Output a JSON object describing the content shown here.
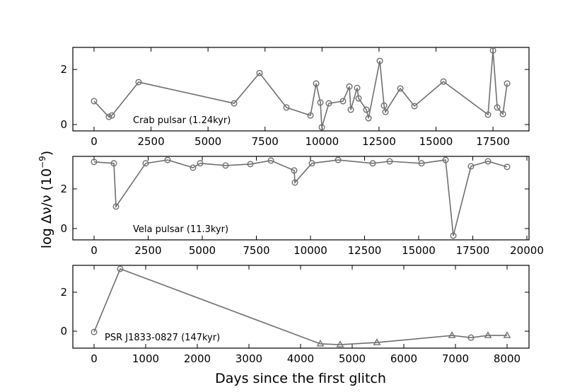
{
  "chart_data": [
    {
      "type": "line",
      "annotation": "Crab pulsar (1.24kyr)",
      "color": "#707070",
      "marker": "o",
      "x": [
        0,
        650,
        780,
        1955,
        6143,
        7260,
        8440,
        9494,
        9743,
        9929,
        9991,
        10301,
        10922,
        11200,
        11263,
        11542,
        11604,
        11945,
        12039,
        12535,
        12721,
        12783,
        13435,
        14055,
        15327,
        17282,
        17500,
        17686,
        17934,
        18120
      ],
      "values": [
        0.85,
        0.28,
        0.33,
        1.54,
        0.77,
        1.87,
        0.62,
        0.33,
        1.49,
        0.8,
        -0.1,
        0.77,
        0.85,
        1.38,
        0.54,
        1.33,
        0.95,
        0.54,
        0.23,
        2.31,
        0.69,
        0.46,
        1.31,
        0.67,
        1.56,
        0.36,
        2.69,
        0.62,
        0.38,
        1.49
      ],
      "xlim": [
        -930,
        19080
      ],
      "ylim": [
        -0.23,
        2.8
      ],
      "xticks": [
        0,
        2500,
        5000,
        7500,
        10000,
        12500,
        15000,
        17500
      ],
      "yticks": [
        0,
        2
      ]
    },
    {
      "type": "line",
      "annotation": "Vela pulsar (11.3kyr)",
      "color": "#707070",
      "marker": "o",
      "ylabel": {
        "base": "log Δν/ν  (10",
        "superscript": "−9",
        "tail": ")"
      },
      "x": [
        0,
        915,
        1013,
        2386,
        3399,
        4575,
        4902,
        6078,
        7222,
        8170,
        9248,
        9281,
        10065,
        11275,
        12876,
        13660,
        15131,
        16242,
        16601,
        17418,
        18203,
        19085
      ],
      "values": [
        3.36,
        3.29,
        1.11,
        3.29,
        3.46,
        3.07,
        3.29,
        3.18,
        3.25,
        3.43,
        2.93,
        2.32,
        3.29,
        3.46,
        3.29,
        3.39,
        3.29,
        3.46,
        -0.36,
        3.14,
        3.39,
        3.11
      ],
      "xlim": [
        -980,
        20098
      ],
      "ylim": [
        -0.57,
        3.64
      ],
      "xticks": [
        0,
        2500,
        5000,
        7500,
        10000,
        12500,
        15000,
        17500,
        20000
      ],
      "yticks": [
        0,
        2
      ]
    },
    {
      "type": "line",
      "annotation": "PSR J1833-0827 (147kyr)",
      "color": "#707070",
      "xlabel": "Days since the first glitch",
      "x": [
        0,
        507,
        4384,
        4767,
        5479,
        6932,
        7301,
        7630,
        8000
      ],
      "values": [
        -0.04,
        3.2,
        -0.65,
        -0.69,
        -0.58,
        -0.22,
        -0.33,
        -0.22,
        -0.22
      ],
      "markers": [
        "o",
        "o",
        "^",
        "^",
        "^",
        "^",
        "o",
        "^",
        "^"
      ],
      "xlim": [
        -411,
        8425
      ],
      "ylim": [
        -0.87,
        3.38
      ],
      "xticks": [
        0,
        1000,
        2000,
        3000,
        4000,
        5000,
        6000,
        7000,
        8000
      ],
      "yticks": [
        0,
        2
      ]
    }
  ]
}
